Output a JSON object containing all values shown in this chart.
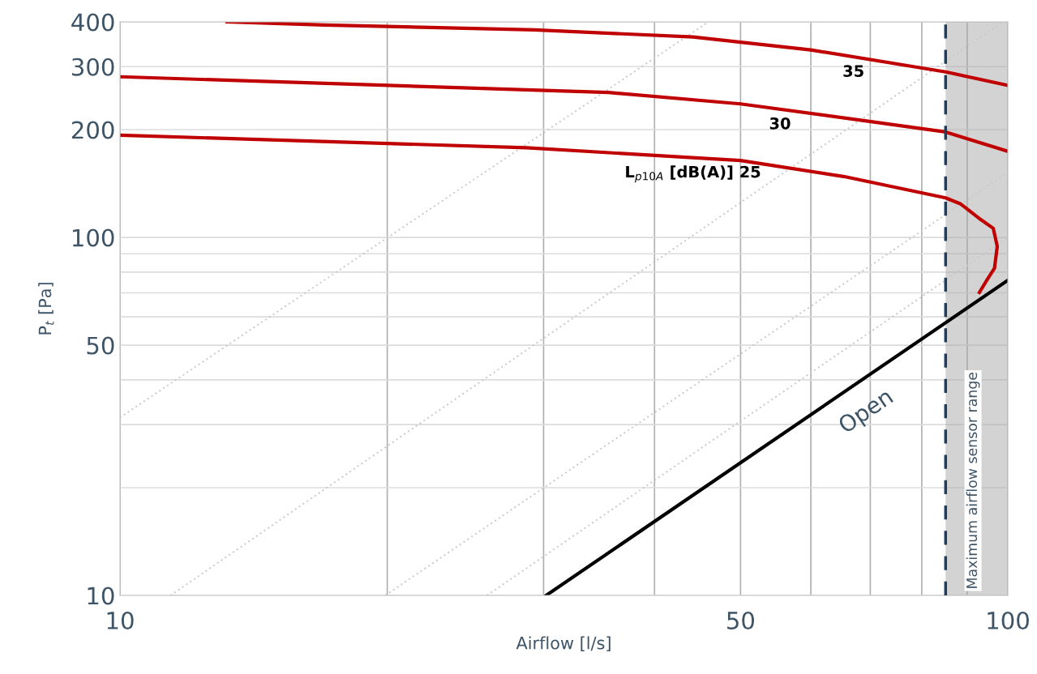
{
  "chart_data": {
    "type": "line",
    "xlabel": "Airflow [l/s]",
    "ylabel": "P$_{t}$ [Pa]",
    "log": "xy",
    "xlim": [
      10,
      100
    ],
    "ylim": [
      10,
      400
    ],
    "xticks": [
      10,
      {
        "value": 20,
        "label": null
      },
      {
        "value": 30,
        "label": null
      },
      {
        "value": 40,
        "label": null
      },
      50,
      {
        "value": 60,
        "label": null
      },
      {
        "value": 70,
        "label": null
      },
      {
        "value": 80,
        "label": null
      },
      {
        "value": 90,
        "label": null
      },
      100
    ],
    "yticks": [
      10,
      {
        "value": 20,
        "label": null
      },
      {
        "value": 30,
        "label": null
      },
      {
        "value": 40,
        "label": null
      },
      50,
      {
        "value": 60,
        "label": null
      },
      {
        "value": 70,
        "label": null
      },
      {
        "value": 80,
        "label": null
      },
      {
        "value": 90,
        "label": null
      },
      100,
      200,
      300,
      400
    ],
    "grid": true,
    "legend": false,
    "marker": "none",
    "series": [
      {
        "color": "#c8c8c8",
        "line_style": "dotted",
        "x": [
          10,
          46.0
        ],
        "values": [
          31.4,
          400
        ]
      },
      {
        "color": "#c8c8c8",
        "line_style": "dotted",
        "x": [
          11.4,
          98.7
        ],
        "values": [
          10,
          400
        ]
      },
      {
        "color": "#c8c8c8",
        "line_style": "dotted",
        "x": [
          19.9,
          100
        ],
        "values": [
          10,
          152
        ]
      },
      {
        "color": "#c8c8c8",
        "line_style": "dotted",
        "x": [
          25.9,
          100
        ],
        "values": [
          10,
          100
        ]
      },
      {
        "color": "#c00000",
        "line_style": "solid",
        "x": [
          10,
          28.7,
          50,
          65.3,
          85.1,
          88.5,
          93.3,
          96.3,
          97.3,
          96.6,
          94.7,
          92.9
        ],
        "values": [
          193,
          178,
          164,
          148,
          129,
          124,
          112,
          106,
          94.4,
          82,
          75.9,
          70.2
        ]
      },
      {
        "color": "#c00000",
        "line_style": "solid",
        "x": [
          10,
          35.5,
          50,
          68.8,
          85.1,
          100
        ],
        "values": [
          281,
          254,
          236,
          212,
          197,
          174
        ]
      },
      {
        "color": "#c00000",
        "line_style": "solid",
        "x": [
          13.2,
          17.0,
          29.3,
          44.2,
          60,
          85.1,
          100
        ],
        "values": [
          400,
          392,
          380,
          363,
          334,
          290,
          266
        ]
      },
      {
        "name": "Open",
        "color": "#000000",
        "line_style": "solid",
        "x": [
          30.2,
          100
        ],
        "values": [
          10,
          75.9
        ]
      }
    ],
    "bands": [
      {
        "axis": "x",
        "from": 85.1,
        "to": 100,
        "label": "Maximum airflow sensor range",
        "color": "#a8a8a8"
      }
    ],
    "ref_lines": [
      {
        "axis": "x",
        "value": 85.1,
        "color": "#1f3d5c",
        "line_style": "dashed"
      }
    ],
    "annotations": [
      "L$_{p10A}$ [dB(A)] 25",
      "30",
      "35"
    ]
  }
}
